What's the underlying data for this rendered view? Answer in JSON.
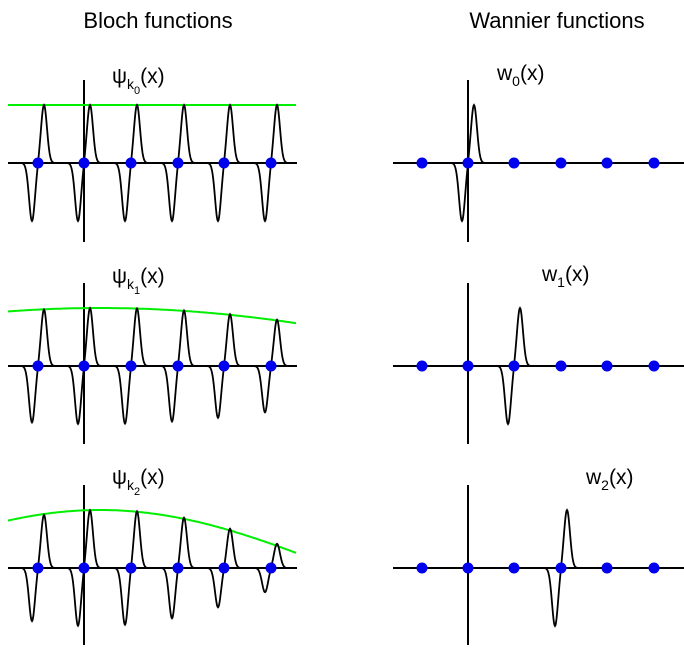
{
  "columns": {
    "left_title": "Bloch functions",
    "right_title": "Wannier functions"
  },
  "bloch_panels": [
    {
      "sym": "ψ",
      "k": "k",
      "kidx": "0",
      "arg": "(x)",
      "envelope": "constant"
    },
    {
      "sym": "ψ",
      "k": "k",
      "kidx": "1",
      "arg": "(x)",
      "envelope": "slow-cosine"
    },
    {
      "sym": "ψ",
      "k": "k",
      "kidx": "2",
      "arg": "(x)",
      "envelope": "fast-cosine"
    }
  ],
  "wannier_panels": [
    {
      "sym": "w",
      "idx": "0",
      "arg": "(x)",
      "site": 0
    },
    {
      "sym": "w",
      "idx": "1",
      "arg": "(x)",
      "site": 1
    },
    {
      "sym": "w",
      "idx": "2",
      "arg": "(x)",
      "site": 2
    }
  ],
  "colors": {
    "curve": "#000000",
    "envelope": "#00ee00",
    "site": "#0000ee",
    "axis": "#000000"
  },
  "lattice_sites_per_panel": 6
}
